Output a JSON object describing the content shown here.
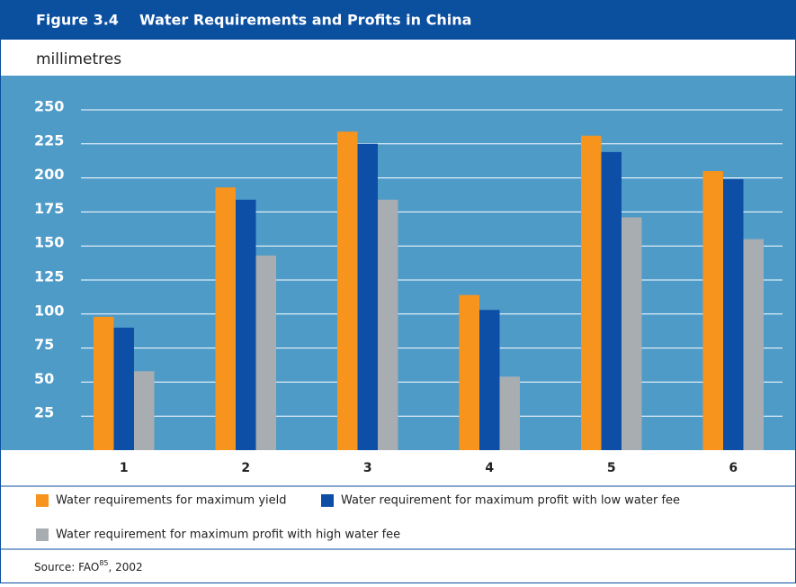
{
  "chart_data": {
    "type": "bar",
    "figure_label": "Figure 3.4",
    "title": "Water Requirements and Profits in China",
    "y_label": "millimetres",
    "categories": [
      "1",
      "2",
      "3",
      "4",
      "5",
      "6"
    ],
    "series": [
      {
        "name": "Water requirements for maximum yield",
        "color": "#f7941d",
        "values": [
          98,
          193,
          234,
          114,
          231,
          205
        ]
      },
      {
        "name": "Water requirement for maximum profit with low water fee",
        "color": "#0d4ea6",
        "values": [
          90,
          184,
          225,
          103,
          219,
          199
        ]
      },
      {
        "name": "Water requirement for maximum profit with high water fee",
        "color": "#a7adb0",
        "values": [
          58,
          143,
          184,
          54,
          171,
          155
        ]
      }
    ],
    "ylim": [
      0,
      250
    ],
    "yticks": [
      25,
      50,
      75,
      100,
      125,
      150,
      175,
      200,
      225,
      250
    ],
    "grid": true,
    "source": "Source: FAO",
    "source_ref": "85",
    "source_year": ", 2002"
  }
}
